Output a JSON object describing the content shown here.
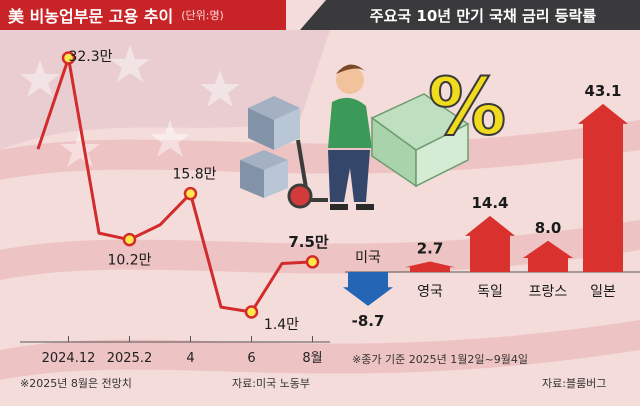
{
  "left_title": {
    "main": "美 비농업부문 고용 추이",
    "unit": "(단위:명)"
  },
  "right_title": "주요국 10년 만기 국채 금리 등락률",
  "left_notes": {
    "estimate": "※2025년 8월은 전망치",
    "source": "자료:미국 노동부"
  },
  "right_notes": {
    "basis": "※종가 기준 2025년 1월2일~9월4일",
    "source": "자료:블룸버그"
  },
  "illustration_symbol": "%",
  "colors": {
    "line": "#d12b2b",
    "marker_fill": "#ffe94a",
    "up_arrow": "#d9312e",
    "down_arrow": "#2466b5",
    "title_left_bg": "#c82427",
    "title_right_bg": "#3a3a3c"
  },
  "chart_data": [
    {
      "type": "line",
      "title": "美 비농업부문 고용 추이",
      "unit": "(단위:명)",
      "x_tick_labels": [
        "2024.12",
        "2025.2",
        "4",
        "6",
        "8월"
      ],
      "points": [
        {
          "x": "2024.11",
          "y": 21.2,
          "label": ""
        },
        {
          "x": "2024.12",
          "y": 32.3,
          "label": "32.3만"
        },
        {
          "x": "2025.1",
          "y": 11.0,
          "label": ""
        },
        {
          "x": "2025.2",
          "y": 10.2,
          "label": "10.2만"
        },
        {
          "x": "2025.3",
          "y": 12.0,
          "label": ""
        },
        {
          "x": "2025.4",
          "y": 15.8,
          "label": "15.8만"
        },
        {
          "x": "2025.5",
          "y": 2.0,
          "label": ""
        },
        {
          "x": "2025.6",
          "y": 1.4,
          "label": "1.4만"
        },
        {
          "x": "2025.7",
          "y": 7.3,
          "label": ""
        },
        {
          "x": "2025.8",
          "y": 7.5,
          "label": "7.5만"
        }
      ],
      "highlighted": [
        "2024.12",
        "2025.2",
        "2025.4",
        "2025.6",
        "2025.8"
      ],
      "y_range": [
        0,
        35
      ]
    },
    {
      "type": "bar",
      "title": "주요국 10년 만기 국채 금리 등락률",
      "categories": [
        "미국",
        "영국",
        "독일",
        "프랑스",
        "일본"
      ],
      "values": [
        -8.7,
        2.7,
        14.4,
        8.0,
        43.1
      ],
      "value_labels": [
        "-8.7",
        "2.7",
        "14.4",
        "8.0",
        "43.1"
      ],
      "style": "arrows"
    }
  ]
}
